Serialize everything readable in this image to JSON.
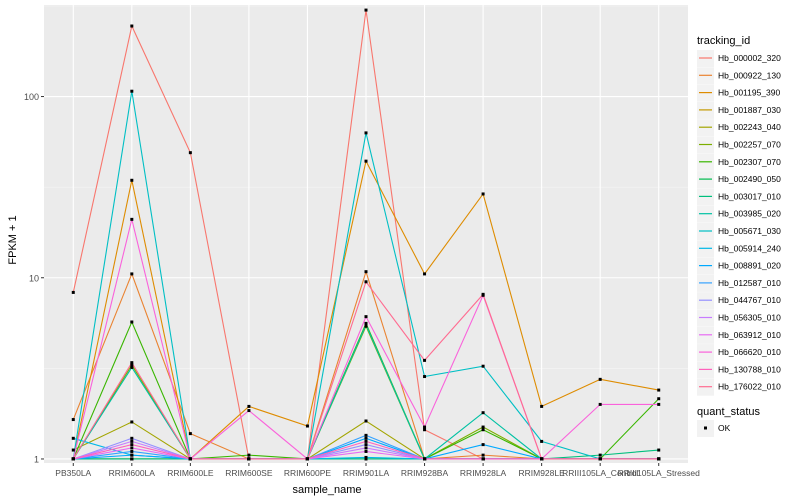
{
  "chart_data": {
    "type": "line",
    "title": "",
    "xlabel": "sample_name",
    "ylabel": "FPKM + 1",
    "y_scale": "log10",
    "ylim": [
      0.95,
      320
    ],
    "y_ticks": [
      1,
      10,
      100
    ],
    "y_tick_labels": [
      "1",
      "10",
      "100"
    ],
    "grid": true,
    "background": "#EBEBEB",
    "categories": [
      "PB350LA",
      "RRIM600LA",
      "RRIM600LE",
      "RRIM600SE",
      "RRIM600PE",
      "RRIM901LA",
      "RRIM928BA",
      "RRIM928LA",
      "RRIM928LE",
      "RRIII105LA_Control",
      "RRIII105LA_Stressed"
    ],
    "category_labels": [
      "PB350LA",
      "RRIM600LA",
      "RRIM600LE",
      "RRIM600SE",
      "RRIM600PE",
      "RRIM901LA",
      "RRIM928BA",
      "RRIM928LA",
      "RRIM928LE",
      "RRIII105LA_Control",
      "RRIII105LA_Stressed"
    ],
    "legend": {
      "title": "tracking_id",
      "placement": "right"
    },
    "legend2": {
      "title": "quant_status",
      "entries": [
        "OK"
      ]
    },
    "series": [
      {
        "name": "Hb_000002_320",
        "color": "#F8766D",
        "values": [
          8.3,
          245,
          49,
          1,
          1,
          300,
          1.45,
          1,
          1,
          1,
          1
        ]
      },
      {
        "name": "Hb_000922_130",
        "color": "#EA8331",
        "values": [
          1.65,
          10.5,
          1.38,
          1.0,
          1.0,
          10.8,
          1.0,
          1.05,
          1.0,
          1.0,
          1.0
        ]
      },
      {
        "name": "Hb_001195_390",
        "color": "#DE8C00",
        "values": [
          1.0,
          34.5,
          1.0,
          1.95,
          1.52,
          44,
          10.5,
          29,
          1.95,
          2.75,
          2.4
        ]
      },
      {
        "name": "Hb_001887_030",
        "color": "#C49A00",
        "values": [
          1.0,
          1.0,
          1.0,
          1.0,
          1.0,
          1.0,
          1.0,
          1.0,
          1.0,
          1.0,
          1.0
        ]
      },
      {
        "name": "Hb_002243_040",
        "color": "#A3A500",
        "values": [
          1.12,
          1.6,
          1.0,
          1.0,
          1.0,
          1.62,
          1.0,
          1.0,
          1.0,
          1.0,
          1.0
        ]
      },
      {
        "name": "Hb_002257_070",
        "color": "#7CAE00",
        "values": [
          1.0,
          3.3,
          1.0,
          1.0,
          1.0,
          5.4,
          1.0,
          1.5,
          1.0,
          1.0,
          1.0
        ]
      },
      {
        "name": "Hb_002307_070",
        "color": "#39B600",
        "values": [
          1.0,
          5.7,
          1.0,
          1.05,
          1.0,
          5.6,
          1.0,
          1.45,
          1.0,
          1.0,
          2.15
        ]
      },
      {
        "name": "Hb_002490_050",
        "color": "#00BB4E",
        "values": [
          1.0,
          1.0,
          1.0,
          1.0,
          1.0,
          1.0,
          1.0,
          1.0,
          1.0,
          1.0,
          1.0
        ]
      },
      {
        "name": "Hb_003017_010",
        "color": "#00BF7D",
        "values": [
          1.0,
          1.0,
          1.0,
          1.0,
          1.0,
          1.0,
          1.0,
          1.0,
          1.0,
          1.05,
          1.12
        ]
      },
      {
        "name": "Hb_003985_020",
        "color": "#00C1A3",
        "values": [
          1.0,
          3.2,
          1.0,
          1.0,
          1.0,
          5.5,
          1.0,
          1.8,
          1.0,
          1.0,
          1.0
        ]
      },
      {
        "name": "Hb_005671_030",
        "color": "#00BFC4",
        "values": [
          1.0,
          107,
          1.0,
          1.0,
          1.0,
          63,
          2.85,
          3.25,
          1.25,
          1.0,
          1.0
        ]
      },
      {
        "name": "Hb_005914_240",
        "color": "#00B8E7",
        "values": [
          1.3,
          1.05,
          1.0,
          1.0,
          1.0,
          1.02,
          1.0,
          1.0,
          1.0,
          1.0,
          1.0
        ]
      },
      {
        "name": "Hb_008891_020",
        "color": "#00A9FF",
        "values": [
          1.0,
          1.05,
          1.0,
          1.0,
          1.0,
          1.3,
          1.0,
          1.2,
          1.0,
          1.0,
          1.0
        ]
      },
      {
        "name": "Hb_012587_010",
        "color": "#35A2FF",
        "values": [
          1.0,
          1.1,
          1.0,
          1.0,
          1.0,
          1.35,
          1.0,
          1.0,
          1.0,
          1.0,
          1.0
        ]
      },
      {
        "name": "Hb_044767_010",
        "color": "#9590FF",
        "values": [
          1.0,
          1.3,
          1.0,
          1.0,
          1.0,
          1.2,
          1.0,
          1.0,
          1.0,
          1.0,
          1.0
        ]
      },
      {
        "name": "Hb_056305_010",
        "color": "#C77CFF",
        "values": [
          1.0,
          1.25,
          1.0,
          1.0,
          1.0,
          1.15,
          1.0,
          1.0,
          1.0,
          1.0,
          1.0
        ]
      },
      {
        "name": "Hb_063912_010",
        "color": "#E76BF3",
        "values": [
          1.0,
          1.15,
          1.0,
          1.0,
          1.0,
          1.1,
          1.0,
          1.0,
          1.0,
          1.0,
          1.0
        ]
      },
      {
        "name": "Hb_066620_010",
        "color": "#FA62DB",
        "values": [
          1.0,
          21,
          1.0,
          1.85,
          1.0,
          6.1,
          1.5,
          8.0,
          1.0,
          2.0,
          2.0
        ]
      },
      {
        "name": "Hb_130788_010",
        "color": "#FF62BC",
        "values": [
          1.0,
          1.2,
          1.0,
          1.0,
          1.0,
          1.25,
          1.0,
          1.0,
          1.0,
          1.0,
          1.0
        ]
      },
      {
        "name": "Hb_176022_010",
        "color": "#FF6C91",
        "values": [
          1.0,
          3.4,
          1.0,
          1.0,
          1.0,
          9.5,
          3.5,
          8.1,
          1.0,
          1.0,
          1.0
        ]
      }
    ]
  }
}
